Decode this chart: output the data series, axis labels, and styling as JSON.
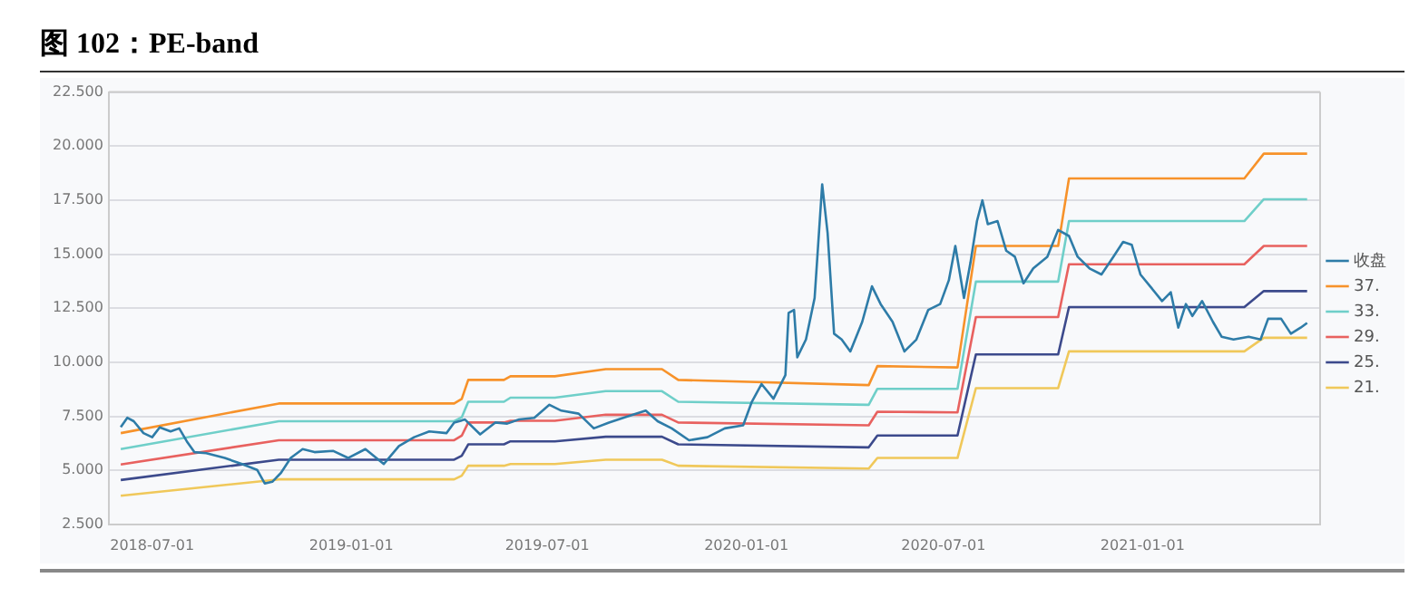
{
  "chart_data": {
    "type": "line",
    "title": "图 102：PE-band",
    "xlim": [
      "2018-05-22",
      "2021-06-14"
    ],
    "xticks": [
      "2018-07-01",
      "2019-01-01",
      "2019-07-01",
      "2020-01-01",
      "2020-07-01",
      "2021-01-01"
    ],
    "ylim": [
      2.5,
      22.5
    ],
    "yticks": [
      {
        "value": 2.5,
        "label": "2.500"
      },
      {
        "value": 5,
        "label": "5.000"
      },
      {
        "value": 7.5,
        "label": "7.500"
      },
      {
        "value": 10,
        "label": "10.000"
      },
      {
        "value": 12.5,
        "label": "12.500"
      },
      {
        "value": 15,
        "label": "15.000"
      },
      {
        "value": 17.5,
        "label": "17.500"
      },
      {
        "value": 20,
        "label": "20.000"
      },
      {
        "value": 22.5,
        "label": "22.500"
      }
    ],
    "grid": "y",
    "legend": "right",
    "marker": "none",
    "series": [
      {
        "name": "收盘",
        "color": "#2e7ca8",
        "x": [
          "2018-06-02",
          "2018-06-08",
          "2018-06-14",
          "2018-06-23",
          "2018-07-01",
          "2018-07-08",
          "2018-07-18",
          "2018-07-26",
          "2018-08-02",
          "2018-08-09",
          "2018-08-20",
          "2018-09-06",
          "2018-09-22",
          "2018-10-06",
          "2018-10-13",
          "2018-10-20",
          "2018-10-28",
          "2018-11-06",
          "2018-11-17",
          "2018-11-28",
          "2018-12-15",
          "2018-12-29",
          "2019-01-14",
          "2019-01-31",
          "2019-02-14",
          "2019-02-28",
          "2019-03-14",
          "2019-03-30",
          "2019-04-06",
          "2019-04-16",
          "2019-04-30",
          "2019-05-14",
          "2019-05-25",
          "2019-06-05",
          "2019-06-19",
          "2019-07-03",
          "2019-07-14",
          "2019-07-30",
          "2019-08-13",
          "2019-08-27",
          "2019-09-13",
          "2019-09-30",
          "2019-10-11",
          "2019-10-24",
          "2019-11-09",
          "2019-11-26",
          "2019-12-12",
          "2019-12-29",
          "2020-01-06",
          "2020-01-15",
          "2020-01-26",
          "2020-02-06",
          "2020-02-09",
          "2020-02-14",
          "2020-02-17",
          "2020-02-25",
          "2020-03-04",
          "2020-03-11",
          "2020-03-16",
          "2020-03-22",
          "2020-03-29",
          "2020-04-06",
          "2020-04-17",
          "2020-04-26",
          "2020-05-04",
          "2020-05-15",
          "2020-05-26",
          "2020-06-06",
          "2020-06-17",
          "2020-06-28",
          "2020-07-06",
          "2020-07-12",
          "2020-07-20",
          "2020-07-26",
          "2020-08-01",
          "2020-08-06",
          "2020-08-11",
          "2020-08-20",
          "2020-08-28",
          "2020-09-05",
          "2020-09-13",
          "2020-09-22",
          "2020-10-05",
          "2020-10-15",
          "2020-10-25",
          "2020-11-02",
          "2020-11-13",
          "2020-11-24",
          "2020-12-05",
          "2020-12-14",
          "2020-12-22",
          "2020-12-30",
          "2021-01-08",
          "2021-01-19",
          "2021-01-27",
          "2021-02-03",
          "2021-02-10",
          "2021-02-16",
          "2021-02-25",
          "2021-03-07",
          "2021-03-15",
          "2021-03-26",
          "2021-04-09",
          "2021-04-20",
          "2021-04-27",
          "2021-05-09",
          "2021-05-18",
          "2021-05-27",
          "2021-06-02"
        ],
        "values": [
          7.0,
          7.43,
          7.27,
          6.72,
          6.53,
          6.99,
          6.8,
          6.94,
          6.34,
          5.84,
          5.79,
          5.57,
          5.29,
          5.02,
          4.39,
          4.47,
          4.88,
          5.57,
          5.98,
          5.84,
          5.9,
          5.57,
          5.98,
          5.29,
          6.12,
          6.53,
          6.8,
          6.72,
          7.21,
          7.35,
          6.66,
          7.21,
          7.16,
          7.35,
          7.43,
          8.03,
          7.76,
          7.62,
          6.94,
          7.21,
          7.49,
          7.76,
          7.27,
          6.94,
          6.39,
          6.53,
          6.94,
          7.08,
          8.17,
          8.99,
          8.31,
          9.4,
          12.28,
          12.42,
          10.23,
          11.05,
          12.97,
          18.23,
          15.98,
          11.32,
          11.05,
          10.5,
          11.87,
          13.51,
          12.69,
          11.87,
          10.5,
          11.05,
          12.42,
          12.69,
          13.79,
          15.38,
          12.97,
          14.61,
          16.53,
          17.49,
          16.39,
          16.53,
          15.16,
          14.88,
          13.65,
          14.34,
          14.88,
          16.12,
          15.84,
          14.88,
          14.34,
          14.06,
          14.88,
          15.57,
          15.43,
          14.06,
          13.51,
          12.83,
          13.24,
          11.6,
          12.69,
          12.14,
          12.83,
          11.87,
          11.18,
          11.05,
          11.18,
          11.05,
          12.01,
          12.01,
          11.32,
          11.6,
          11.82
        ]
      },
      {
        "name": "37.",
        "color": "#f7922a",
        "x": [
          "2018-06-02",
          "2018-10-26",
          "2019-04-06",
          "2019-04-13",
          "2019-04-19",
          "2019-05-22",
          "2019-05-28",
          "2019-07-08",
          "2019-08-24",
          "2019-10-15",
          "2019-10-30",
          "2020-04-23",
          "2020-05-01",
          "2020-07-14",
          "2020-07-31",
          "2020-10-15",
          "2020-10-25",
          "2021-04-05",
          "2021-04-23",
          "2021-06-02"
        ],
        "values": [
          6.72,
          8.09,
          8.09,
          8.3,
          9.18,
          9.18,
          9.35,
          9.35,
          9.68,
          9.68,
          9.18,
          8.94,
          9.82,
          9.76,
          15.38,
          15.38,
          18.5,
          18.5,
          19.65,
          19.65
        ]
      },
      {
        "name": "33.",
        "color": "#6fcfc9",
        "x": [
          "2018-06-02",
          "2018-10-26",
          "2019-04-06",
          "2019-04-13",
          "2019-04-19",
          "2019-05-22",
          "2019-05-28",
          "2019-07-08",
          "2019-08-24",
          "2019-10-15",
          "2019-10-30",
          "2020-04-23",
          "2020-05-01",
          "2020-07-14",
          "2020-07-31",
          "2020-10-15",
          "2020-10-25",
          "2021-04-05",
          "2021-04-23",
          "2021-06-02"
        ],
        "values": [
          5.98,
          7.27,
          7.27,
          7.45,
          8.17,
          8.17,
          8.36,
          8.36,
          8.66,
          8.66,
          8.17,
          8.03,
          8.77,
          8.77,
          13.73,
          13.73,
          16.53,
          16.53,
          17.54,
          17.54
        ]
      },
      {
        "name": "29.",
        "color": "#e8615f",
        "x": [
          "2018-06-02",
          "2018-10-26",
          "2019-04-06",
          "2019-04-13",
          "2019-04-19",
          "2019-05-22",
          "2019-05-28",
          "2019-07-08",
          "2019-08-24",
          "2019-10-15",
          "2019-10-30",
          "2020-04-23",
          "2020-05-01",
          "2020-07-14",
          "2020-07-31",
          "2020-10-15",
          "2020-10-25",
          "2021-04-05",
          "2021-04-23",
          "2021-06-02"
        ],
        "values": [
          5.27,
          6.39,
          6.39,
          6.6,
          7.21,
          7.21,
          7.29,
          7.29,
          7.57,
          7.57,
          7.21,
          7.08,
          7.71,
          7.68,
          12.09,
          12.09,
          14.53,
          14.53,
          15.38,
          15.38
        ]
      },
      {
        "name": "25.",
        "color": "#3c4a8c",
        "x": [
          "2018-06-02",
          "2018-10-26",
          "2019-04-06",
          "2019-04-13",
          "2019-04-19",
          "2019-05-22",
          "2019-05-28",
          "2019-07-08",
          "2019-08-24",
          "2019-10-15",
          "2019-10-30",
          "2020-04-23",
          "2020-05-01",
          "2020-07-14",
          "2020-07-31",
          "2020-10-15",
          "2020-10-25",
          "2021-04-05",
          "2021-04-23",
          "2021-06-02"
        ],
        "values": [
          4.55,
          5.49,
          5.49,
          5.67,
          6.2,
          6.2,
          6.34,
          6.34,
          6.55,
          6.55,
          6.2,
          6.06,
          6.61,
          6.61,
          10.36,
          10.36,
          12.55,
          12.55,
          13.29,
          13.29
        ]
      },
      {
        "name": "21.",
        "color": "#f0c85a",
        "x": [
          "2018-06-02",
          "2018-10-26",
          "2019-04-06",
          "2019-04-13",
          "2019-04-19",
          "2019-05-22",
          "2019-05-28",
          "2019-07-08",
          "2019-08-24",
          "2019-10-15",
          "2019-10-30",
          "2020-04-23",
          "2020-05-01",
          "2020-07-14",
          "2020-07-31",
          "2020-10-15",
          "2020-10-25",
          "2021-04-05",
          "2021-04-23",
          "2021-06-02"
        ],
        "values": [
          3.82,
          4.58,
          4.58,
          4.75,
          5.21,
          5.21,
          5.29,
          5.29,
          5.49,
          5.49,
          5.21,
          5.08,
          5.57,
          5.57,
          8.8,
          8.8,
          10.5,
          10.5,
          11.13,
          11.13
        ]
      }
    ]
  }
}
